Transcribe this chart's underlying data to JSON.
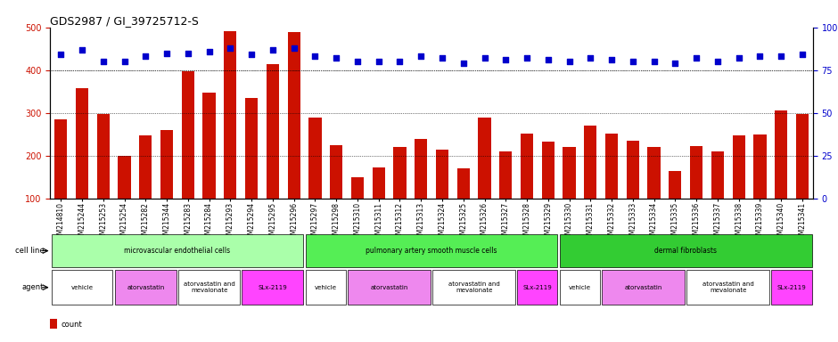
{
  "title": "GDS2987 / GI_39725712-S",
  "samples": [
    "GSM214810",
    "GSM215244",
    "GSM215253",
    "GSM215254",
    "GSM215282",
    "GSM215344",
    "GSM215283",
    "GSM215284",
    "GSM215293",
    "GSM215294",
    "GSM215295",
    "GSM215296",
    "GSM215297",
    "GSM215298",
    "GSM215310",
    "GSM215311",
    "GSM215312",
    "GSM215313",
    "GSM215324",
    "GSM215325",
    "GSM215326",
    "GSM215327",
    "GSM215328",
    "GSM215329",
    "GSM215330",
    "GSM215331",
    "GSM215332",
    "GSM215333",
    "GSM215334",
    "GSM215335",
    "GSM215336",
    "GSM215337",
    "GSM215338",
    "GSM215339",
    "GSM215340",
    "GSM215341"
  ],
  "counts": [
    285,
    358,
    298,
    200,
    248,
    260,
    398,
    348,
    492,
    335,
    415,
    488,
    290,
    225,
    150,
    172,
    220,
    240,
    215,
    170,
    290,
    210,
    252,
    232,
    220,
    270,
    252,
    234,
    220,
    165,
    223,
    210,
    248,
    250,
    305,
    298
  ],
  "percentiles": [
    84,
    87,
    80,
    80,
    83,
    85,
    85,
    86,
    88,
    84,
    87,
    88,
    83,
    82,
    80,
    80,
    80,
    83,
    82,
    79,
    82,
    81,
    82,
    81,
    80,
    82,
    81,
    80,
    80,
    79,
    82,
    80,
    82,
    83,
    83,
    84
  ],
  "bar_color": "#cc1100",
  "dot_color": "#0000cc",
  "ylim_left": [
    100,
    500
  ],
  "ylim_right": [
    0,
    100
  ],
  "yticks_left": [
    100,
    200,
    300,
    400,
    500
  ],
  "yticks_right": [
    0,
    25,
    50,
    75,
    100
  ],
  "grid_values": [
    200,
    300,
    400
  ],
  "cell_line_groups": [
    {
      "label": "microvascular endothelial cells",
      "start": 0,
      "end": 11,
      "color": "#aaffaa"
    },
    {
      "label": "pulmonary artery smooth muscle cells",
      "start": 12,
      "end": 23,
      "color": "#55ee55"
    },
    {
      "label": "dermal fibroblasts",
      "start": 24,
      "end": 35,
      "color": "#33cc33"
    }
  ],
  "agent_groups": [
    {
      "label": "vehicle",
      "start": 0,
      "end": 2,
      "color": "#ffffff"
    },
    {
      "label": "atorvastatin",
      "start": 3,
      "end": 5,
      "color": "#ee88ee"
    },
    {
      "label": "atorvastatin and\nmevalonate",
      "start": 6,
      "end": 8,
      "color": "#ffffff"
    },
    {
      "label": "SLx-2119",
      "start": 9,
      "end": 11,
      "color": "#ff44ff"
    },
    {
      "label": "vehicle",
      "start": 12,
      "end": 13,
      "color": "#ffffff"
    },
    {
      "label": "atorvastatin",
      "start": 14,
      "end": 17,
      "color": "#ee88ee"
    },
    {
      "label": "atorvastatin and\nmevalonate",
      "start": 18,
      "end": 21,
      "color": "#ffffff"
    },
    {
      "label": "SLx-2119",
      "start": 22,
      "end": 23,
      "color": "#ff44ff"
    },
    {
      "label": "vehicle",
      "start": 24,
      "end": 25,
      "color": "#ffffff"
    },
    {
      "label": "atorvastatin",
      "start": 26,
      "end": 29,
      "color": "#ee88ee"
    },
    {
      "label": "atorvastatin and\nmevalonate",
      "start": 30,
      "end": 33,
      "color": "#ffffff"
    },
    {
      "label": "SLx-2119",
      "start": 34,
      "end": 35,
      "color": "#ff44ff"
    }
  ],
  "bg_color": "#ffffff",
  "legend_count_color": "#cc1100",
  "legend_dot_color": "#0000cc"
}
